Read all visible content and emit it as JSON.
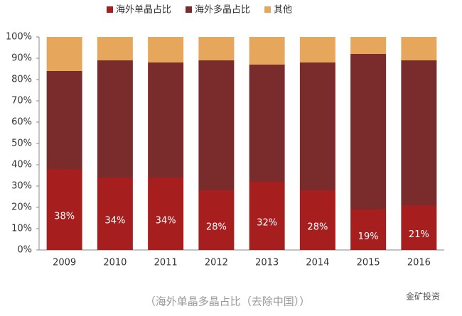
{
  "chart_data": {
    "type": "stacked_bar",
    "caption": "（海外单晶多晶占比（去除中国））",
    "watermark": "金矿投资",
    "categories": [
      "2009",
      "2010",
      "2011",
      "2012",
      "2013",
      "2014",
      "2015",
      "2016"
    ],
    "series": [
      {
        "name": "海外单晶占比",
        "color": "#a61e1e",
        "values": [
          38,
          34,
          34,
          28,
          32,
          28,
          19,
          21
        ],
        "value_labels": [
          "38%",
          "34%",
          "34%",
          "28%",
          "32%",
          "28%",
          "19%",
          "21%"
        ]
      },
      {
        "name": "海外多晶占比",
        "color": "#7a2c2c",
        "values": [
          46,
          55,
          54,
          61,
          55,
          60,
          73,
          68
        ]
      },
      {
        "name": "其他",
        "color": "#e6a75c",
        "values": [
          16,
          11,
          12,
          11,
          13,
          12,
          8,
          11
        ]
      }
    ],
    "ylim": [
      0,
      100
    ],
    "yticks": [
      {
        "value": 0,
        "label": "0%"
      },
      {
        "value": 10,
        "label": "10%"
      },
      {
        "value": 20,
        "label": "20%"
      },
      {
        "value": 30,
        "label": "30%"
      },
      {
        "value": 40,
        "label": "40%"
      },
      {
        "value": 50,
        "label": "50%"
      },
      {
        "value": 60,
        "label": "60%"
      },
      {
        "value": 70,
        "label": "70%"
      },
      {
        "value": 80,
        "label": "80%"
      },
      {
        "value": 90,
        "label": "90%"
      },
      {
        "value": 100,
        "label": "100%"
      }
    ]
  }
}
